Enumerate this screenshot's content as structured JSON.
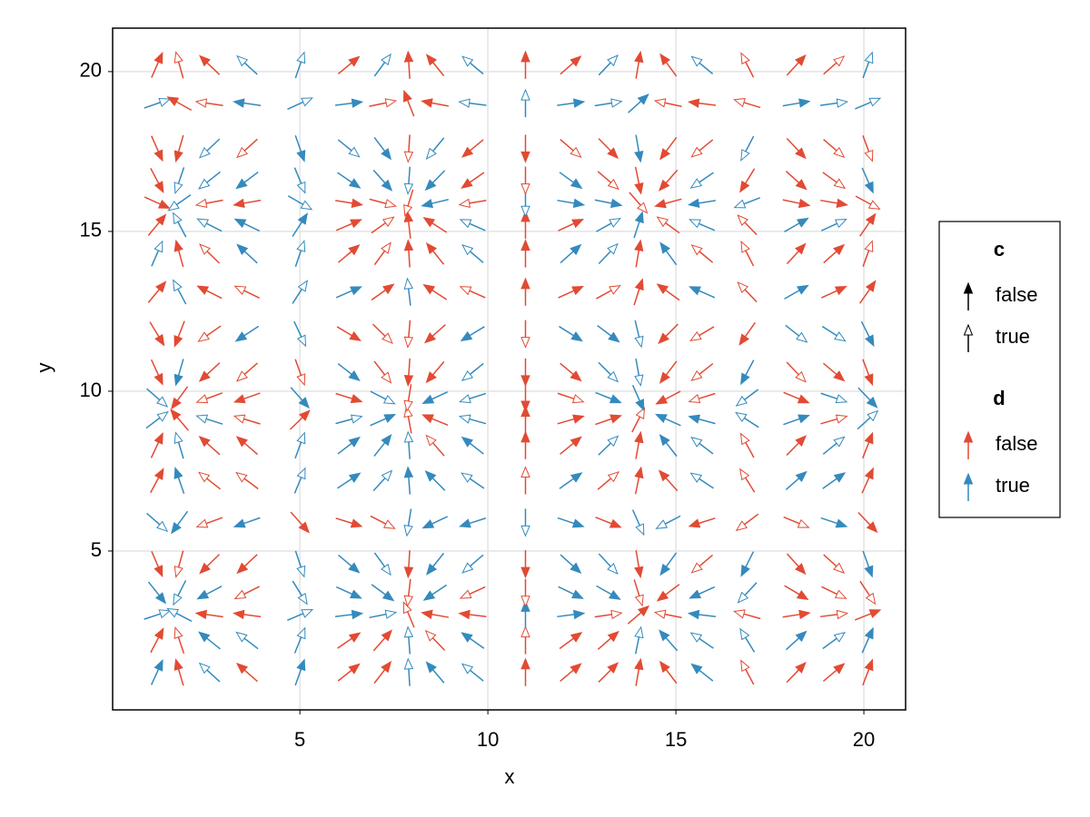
{
  "chart_data": {
    "type": "quiver",
    "xlabel": "x",
    "ylabel": "y",
    "xlim": [
      0.02,
      21.11
    ],
    "ylim": [
      0.03,
      21.36
    ],
    "xticks": [
      5,
      10,
      15,
      20
    ],
    "yticks": [
      5,
      10,
      15,
      20
    ],
    "grid": true,
    "x": [
      1.2,
      1.8,
      2.6,
      3.6,
      5.0,
      6.3,
      7.2,
      7.9,
      8.6,
      9.6,
      11.0,
      12.2,
      13.2,
      14.0,
      14.8,
      15.7,
      16.9,
      18.2,
      19.2,
      20.1
    ],
    "y": [
      1.2,
      2.2,
      3.0,
      3.7,
      4.6,
      5.9,
      7.2,
      8.3,
      9.1,
      9.8,
      10.6,
      11.8,
      13.1,
      14.3,
      15.2,
      15.9,
      16.6,
      17.6,
      19.0,
      20.2
    ],
    "u": [
      0.36,
      -0.23,
      -0.86,
      -0.9,
      0.28,
      1.0,
      0.61,
      -0.05,
      -0.67,
      -0.98,
      0.0,
      0.94,
      0.79,
      0.14,
      -0.6,
      -1.0,
      -0.42,
      0.76,
      0.94,
      0.3
    ],
    "v": [
      0.93,
      0.81,
      0.14,
      -0.53,
      -0.99,
      -0.37,
      0.79,
      0.9,
      0.32,
      -0.37,
      -0.93,
      -0.7,
      0.51,
      0.98,
      0.51,
      -0.19,
      -0.8,
      -0.95,
      0.15,
      0.97
    ],
    "d": [
      [
        true,
        false,
        true,
        false,
        true,
        false,
        false,
        true,
        true,
        true,
        false,
        false,
        false,
        false,
        false,
        true,
        false,
        false,
        false,
        false
      ],
      [
        false,
        false,
        true,
        true,
        true,
        false,
        false,
        true,
        false,
        true,
        false,
        false,
        false,
        true,
        true,
        true,
        true,
        true,
        true,
        true
      ],
      [
        true,
        true,
        false,
        false,
        true,
        true,
        true,
        false,
        false,
        false,
        true,
        true,
        false,
        false,
        false,
        true,
        false,
        false,
        false,
        false
      ],
      [
        true,
        true,
        true,
        false,
        true,
        true,
        true,
        false,
        true,
        false,
        false,
        true,
        true,
        false,
        false,
        true,
        true,
        false,
        false,
        false
      ],
      [
        false,
        false,
        false,
        false,
        true,
        true,
        true,
        false,
        true,
        true,
        false,
        true,
        true,
        false,
        true,
        false,
        true,
        false,
        false,
        true
      ],
      [
        true,
        true,
        false,
        true,
        false,
        false,
        false,
        true,
        true,
        true,
        true,
        true,
        false,
        true,
        true,
        false,
        false,
        false,
        true,
        false
      ],
      [
        false,
        true,
        false,
        false,
        true,
        true,
        true,
        true,
        true,
        true,
        false,
        true,
        false,
        false,
        false,
        true,
        false,
        true,
        true,
        false
      ],
      [
        false,
        true,
        false,
        false,
        true,
        true,
        true,
        true,
        false,
        true,
        false,
        false,
        true,
        false,
        true,
        true,
        false,
        false,
        true,
        false
      ],
      [
        true,
        false,
        true,
        false,
        false,
        true,
        true,
        false,
        false,
        true,
        false,
        false,
        false,
        false,
        true,
        true,
        true,
        true,
        false,
        true
      ],
      [
        true,
        false,
        false,
        false,
        true,
        false,
        true,
        false,
        true,
        true,
        false,
        false,
        true,
        true,
        false,
        false,
        true,
        false,
        true,
        true
      ],
      [
        false,
        true,
        false,
        false,
        false,
        true,
        false,
        false,
        false,
        true,
        false,
        false,
        true,
        true,
        false,
        false,
        true,
        false,
        false,
        false
      ],
      [
        false,
        false,
        false,
        true,
        true,
        false,
        false,
        false,
        false,
        true,
        false,
        true,
        true,
        true,
        false,
        false,
        false,
        true,
        true,
        true
      ],
      [
        false,
        true,
        false,
        false,
        true,
        true,
        false,
        true,
        false,
        false,
        false,
        false,
        false,
        false,
        false,
        true,
        false,
        true,
        false,
        false
      ],
      [
        true,
        false,
        false,
        true,
        true,
        false,
        false,
        false,
        false,
        true,
        false,
        true,
        true,
        false,
        true,
        false,
        false,
        false,
        false,
        false
      ],
      [
        false,
        true,
        true,
        true,
        true,
        false,
        false,
        false,
        false,
        true,
        false,
        false,
        true,
        true,
        false,
        true,
        false,
        true,
        true,
        false
      ],
      [
        false,
        true,
        false,
        false,
        true,
        false,
        false,
        false,
        true,
        false,
        true,
        true,
        true,
        false,
        false,
        true,
        true,
        false,
        false,
        false
      ],
      [
        false,
        true,
        true,
        true,
        true,
        true,
        true,
        true,
        true,
        false,
        false,
        true,
        false,
        false,
        false,
        true,
        false,
        false,
        false,
        true
      ],
      [
        false,
        false,
        true,
        false,
        true,
        true,
        true,
        false,
        true,
        false,
        false,
        false,
        false,
        true,
        false,
        false,
        true,
        false,
        false,
        false
      ],
      [
        true,
        false,
        false,
        true,
        true,
        true,
        false,
        false,
        false,
        true,
        true,
        true,
        true,
        true,
        false,
        false,
        false,
        true,
        true,
        true
      ],
      [
        false,
        false,
        false,
        true,
        true,
        false,
        true,
        false,
        false,
        true,
        false,
        false,
        true,
        false,
        false,
        true,
        false,
        false,
        false,
        true
      ]
    ],
    "c": [
      [
        false,
        false,
        true,
        false,
        false,
        false,
        false,
        true,
        false,
        true,
        false,
        false,
        false,
        false,
        false,
        false,
        true,
        false,
        false,
        false
      ],
      [
        false,
        true,
        false,
        true,
        true,
        false,
        false,
        true,
        true,
        false,
        true,
        false,
        false,
        true,
        false,
        true,
        true,
        false,
        true,
        false
      ],
      [
        true,
        true,
        false,
        false,
        true,
        false,
        true,
        true,
        false,
        false,
        false,
        false,
        true,
        false,
        true,
        false,
        true,
        false,
        true,
        false
      ],
      [
        false,
        true,
        false,
        true,
        true,
        false,
        false,
        true,
        false,
        true,
        true,
        false,
        false,
        true,
        false,
        false,
        true,
        false,
        true,
        true
      ],
      [
        false,
        true,
        false,
        false,
        true,
        false,
        true,
        false,
        false,
        true,
        false,
        false,
        true,
        false,
        false,
        true,
        false,
        false,
        true,
        false
      ],
      [
        true,
        false,
        true,
        false,
        false,
        false,
        true,
        true,
        false,
        false,
        true,
        false,
        false,
        true,
        true,
        false,
        true,
        true,
        false,
        false
      ],
      [
        false,
        false,
        true,
        true,
        true,
        false,
        true,
        false,
        false,
        true,
        true,
        false,
        true,
        false,
        false,
        true,
        true,
        false,
        false,
        false
      ],
      [
        false,
        true,
        false,
        false,
        true,
        false,
        false,
        true,
        true,
        false,
        false,
        false,
        true,
        false,
        false,
        true,
        true,
        false,
        true,
        false
      ],
      [
        true,
        false,
        true,
        true,
        false,
        true,
        false,
        true,
        false,
        true,
        false,
        false,
        false,
        true,
        false,
        false,
        true,
        false,
        true,
        true
      ],
      [
        true,
        false,
        true,
        false,
        false,
        false,
        true,
        true,
        false,
        true,
        false,
        true,
        false,
        false,
        false,
        true,
        true,
        false,
        true,
        false
      ],
      [
        false,
        false,
        false,
        true,
        true,
        false,
        true,
        false,
        false,
        true,
        false,
        false,
        true,
        true,
        false,
        true,
        false,
        true,
        false,
        false
      ],
      [
        false,
        false,
        true,
        false,
        true,
        false,
        true,
        true,
        false,
        false,
        true,
        false,
        false,
        true,
        false,
        true,
        false,
        true,
        true,
        false
      ],
      [
        false,
        true,
        false,
        true,
        true,
        false,
        false,
        true,
        false,
        true,
        false,
        false,
        true,
        false,
        false,
        false,
        true,
        false,
        false,
        false
      ],
      [
        true,
        false,
        true,
        false,
        true,
        false,
        true,
        false,
        false,
        true,
        false,
        false,
        true,
        false,
        false,
        true,
        true,
        false,
        false,
        true
      ],
      [
        false,
        true,
        true,
        false,
        false,
        false,
        true,
        false,
        false,
        true,
        false,
        false,
        true,
        false,
        true,
        true,
        true,
        false,
        true,
        false
      ],
      [
        false,
        true,
        true,
        false,
        true,
        false,
        true,
        true,
        false,
        true,
        true,
        false,
        false,
        true,
        false,
        false,
        true,
        false,
        false,
        true
      ],
      [
        false,
        true,
        true,
        false,
        true,
        false,
        false,
        true,
        false,
        false,
        true,
        false,
        true,
        false,
        false,
        true,
        false,
        false,
        true,
        false
      ],
      [
        false,
        false,
        true,
        true,
        false,
        true,
        false,
        true,
        true,
        false,
        false,
        true,
        false,
        false,
        false,
        true,
        true,
        false,
        true,
        true
      ],
      [
        true,
        false,
        true,
        false,
        true,
        false,
        true,
        false,
        false,
        true,
        true,
        false,
        true,
        false,
        true,
        false,
        true,
        false,
        true,
        true
      ],
      [
        false,
        true,
        false,
        true,
        true,
        false,
        true,
        false,
        false,
        true,
        false,
        false,
        true,
        false,
        false,
        true,
        true,
        false,
        true,
        true
      ]
    ],
    "d_colors": [
      "#e24a33",
      "#348abd"
    ],
    "legend": [
      {
        "title": "c",
        "entries": [
          "false",
          "true"
        ]
      },
      {
        "title": "d",
        "entries": [
          "false",
          "true"
        ]
      }
    ]
  }
}
